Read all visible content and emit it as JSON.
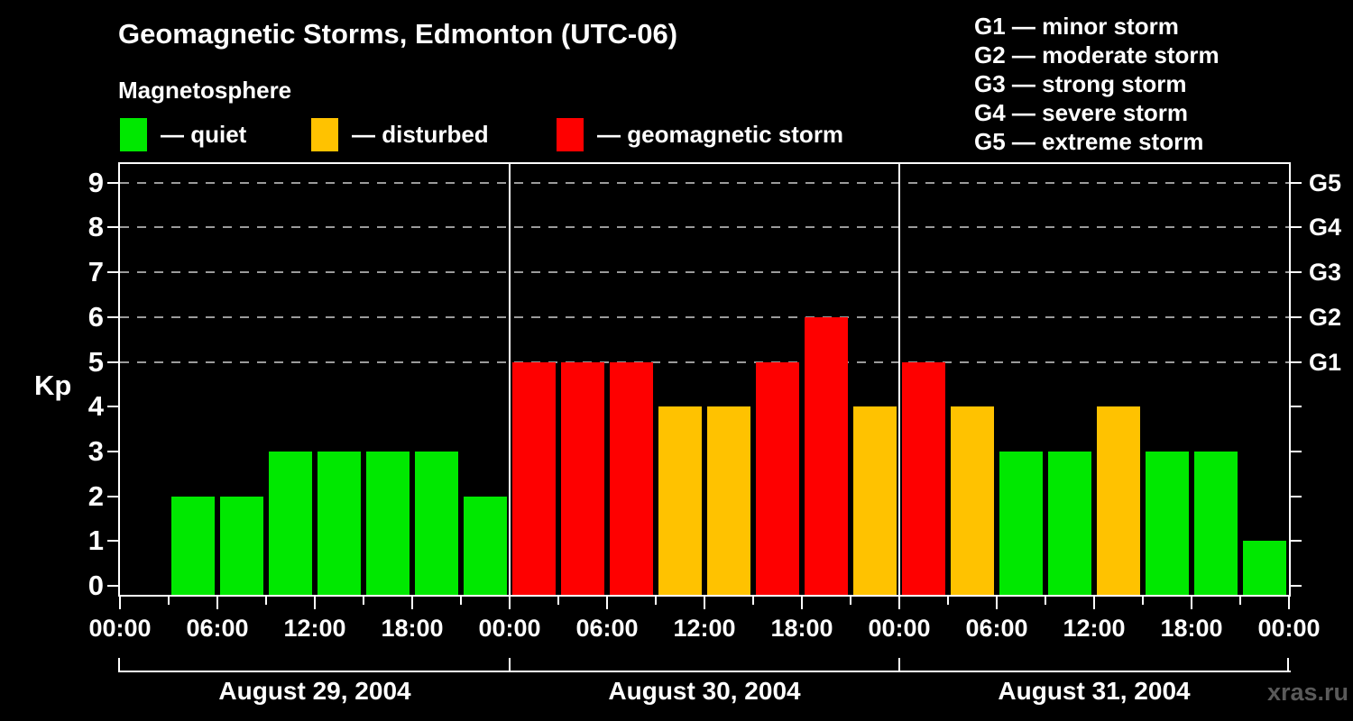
{
  "header": {
    "title": "Geomagnetic Storms, Edmonton (UTC-06)",
    "subtitle": "Magnetosphere"
  },
  "legend": {
    "quiet": {
      "label": "— quiet",
      "color": "#00e800"
    },
    "disturbed": {
      "label": "— disturbed",
      "color": "#ffc200"
    },
    "storm": {
      "label": "— geomagnetic storm",
      "color": "#fe0000"
    }
  },
  "g_legend": [
    "G1 — minor storm",
    "G2 — moderate storm",
    "G3 — strong storm",
    "G4 — severe storm",
    "G5 — extreme storm"
  ],
  "watermark": {
    "text": "xras.ru",
    "color": "#5a5a5a"
  },
  "chart_data": {
    "type": "bar",
    "title": "Geomagnetic Storms, Edmonton (UTC-06)",
    "subtitle": "Magnetosphere",
    "ylabel": "Kp",
    "ylim": [
      0,
      9
    ],
    "y_ticks": [
      0,
      1,
      2,
      3,
      4,
      5,
      6,
      7,
      8,
      9
    ],
    "grid": "dashed horizontal lines at Kp 5 through 9 only",
    "legend_position": "top",
    "bar_interval_hours": 3,
    "bars_per_day": 8,
    "x_major_tick_labels": [
      "00:00",
      "06:00",
      "12:00",
      "18:00"
    ],
    "x_final_tick_label": "00:00",
    "g_scale": [
      {
        "label": "G1",
        "kp": 5
      },
      {
        "label": "G2",
        "kp": 6
      },
      {
        "label": "G3",
        "kp": 7
      },
      {
        "label": "G4",
        "kp": 8
      },
      {
        "label": "G5",
        "kp": 9
      }
    ],
    "color_rules": {
      "quiet_kp_max": 3,
      "disturbed_kp": 4,
      "storm_kp_min": 5
    },
    "days": [
      {
        "date": "August 29, 2004",
        "kp": [
          0,
          2,
          2,
          3,
          3,
          3,
          3,
          2
        ]
      },
      {
        "date": "August 30, 2004",
        "kp": [
          5,
          5,
          5,
          4,
          4,
          5,
          6,
          4
        ]
      },
      {
        "date": "August 31, 2004",
        "kp": [
          5,
          4,
          3,
          3,
          4,
          3,
          3,
          1
        ]
      }
    ]
  }
}
